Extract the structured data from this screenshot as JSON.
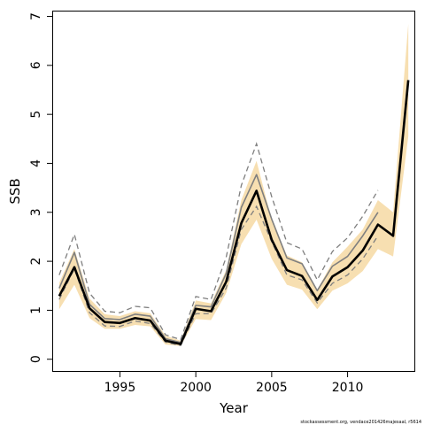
{
  "chart_data": {
    "type": "line",
    "title": "",
    "xlabel": "Year",
    "ylabel": "SSB",
    "xlim": [
      1990.6,
      2014.4
    ],
    "ylim": [
      -0.24,
      7.1
    ],
    "x_ticks": [
      1995,
      2000,
      2005,
      2010
    ],
    "y_ticks": [
      0,
      1,
      2,
      3,
      4,
      5,
      6,
      7
    ],
    "grid": false,
    "legend": "none",
    "credit": "stockassessment.org, vendace201426majesaal, r5614",
    "colors": {
      "band": "#f7dfb1",
      "estimate": "#000000",
      "previous": "#7f7f7f",
      "previous_ci": "#7f7f7f",
      "axis": "#000000"
    },
    "series": [
      {
        "kind": "confidence-band",
        "x": [
          1991,
          1992,
          1993,
          1994,
          1995,
          1996,
          1997,
          1998,
          1999,
          2000,
          2001,
          2002,
          2003,
          2004,
          2005,
          2006,
          2007,
          2008,
          2009,
          2010,
          2011,
          2012,
          2013,
          2014
        ],
        "lower": [
          1.02,
          1.52,
          0.84,
          0.62,
          0.62,
          0.7,
          0.67,
          0.3,
          0.27,
          0.82,
          0.8,
          1.35,
          2.35,
          2.85,
          2.05,
          1.52,
          1.42,
          1.02,
          1.4,
          1.55,
          1.8,
          2.25,
          2.1,
          4.55
        ],
        "upper": [
          1.56,
          2.25,
          1.24,
          0.92,
          0.88,
          0.98,
          0.94,
          0.48,
          0.38,
          1.2,
          1.14,
          1.82,
          3.25,
          4.05,
          2.85,
          2.12,
          1.98,
          1.42,
          1.98,
          2.3,
          2.65,
          3.25,
          3.0,
          6.85
        ]
      },
      {
        "kind": "estimate",
        "x": [
          1991,
          1992,
          1993,
          1994,
          1995,
          1996,
          1997,
          1998,
          1999,
          2000,
          2001,
          2002,
          2003,
          2004,
          2005,
          2006,
          2007,
          2008,
          2009,
          2010,
          2011,
          2012,
          2013,
          2014
        ],
        "y": [
          1.29,
          1.88,
          1.04,
          0.76,
          0.74,
          0.84,
          0.79,
          0.38,
          0.31,
          1.03,
          0.98,
          1.58,
          2.78,
          3.44,
          2.44,
          1.82,
          1.7,
          1.21,
          1.69,
          1.88,
          2.22,
          2.75,
          2.52,
          5.7
        ]
      },
      {
        "kind": "previous-estimate",
        "x": [
          1991,
          1992,
          1993,
          1994,
          1995,
          1996,
          1997,
          1998,
          1999,
          2000,
          2001,
          2002,
          2003,
          2004,
          2005,
          2006,
          2007,
          2008,
          2009,
          2010,
          2011,
          2012
        ],
        "y": [
          1.45,
          2.18,
          1.12,
          0.83,
          0.81,
          0.92,
          0.88,
          0.42,
          0.34,
          1.1,
          1.07,
          1.75,
          3.1,
          3.77,
          2.86,
          2.07,
          1.95,
          1.4,
          1.9,
          2.1,
          2.52,
          3.0
        ]
      },
      {
        "kind": "previous-upper",
        "x": [
          1991,
          1992,
          1993,
          1994,
          1995,
          1996,
          1997,
          1998,
          1999,
          2000,
          2001,
          2002,
          2003,
          2004,
          2005,
          2006,
          2007,
          2008,
          2009,
          2010,
          2011,
          2012
        ],
        "y": [
          1.72,
          2.55,
          1.35,
          0.98,
          0.95,
          1.08,
          1.05,
          0.5,
          0.4,
          1.28,
          1.22,
          2.08,
          3.55,
          4.4,
          3.32,
          2.38,
          2.25,
          1.62,
          2.2,
          2.48,
          2.92,
          3.45
        ]
      },
      {
        "kind": "previous-lower",
        "x": [
          1991,
          1992,
          1993,
          1994,
          1995,
          1996,
          1997,
          1998,
          1999,
          2000,
          2001,
          2002,
          2003,
          2004,
          2005,
          2006,
          2007,
          2008,
          2009,
          2010,
          2011,
          2012
        ],
        "y": [
          1.22,
          1.85,
          0.95,
          0.68,
          0.67,
          0.78,
          0.73,
          0.35,
          0.28,
          0.93,
          0.93,
          1.45,
          2.65,
          3.12,
          2.4,
          1.72,
          1.62,
          1.15,
          1.55,
          1.72,
          2.05,
          2.52
        ]
      }
    ]
  }
}
